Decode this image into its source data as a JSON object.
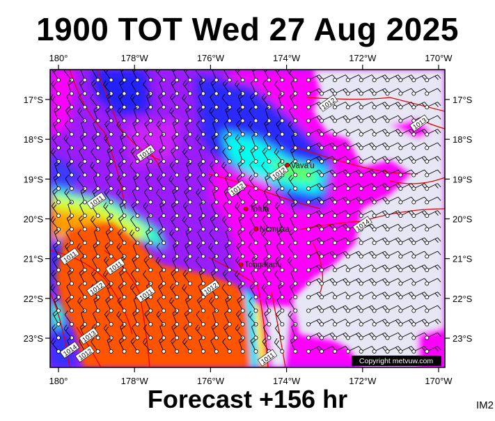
{
  "title": "1900 TOT Wed 27 Aug 2025",
  "footer": "Forecast +156 hr",
  "corner_label": "IM2",
  "copyright": "Copyright metvuw.com",
  "longitude_ticks": [
    "180°",
    "178°W",
    "176°W",
    "174°W",
    "172°W",
    "170°W"
  ],
  "latitude_ticks": [
    "17°S",
    "18°S",
    "19°S",
    "20°S",
    "21°S",
    "22°S",
    "23°S"
  ],
  "places": [
    {
      "name": "Vava'u",
      "lon": -173.98,
      "lat": -18.65
    },
    {
      "name": "Tofua",
      "lon": -175.07,
      "lat": -19.75
    },
    {
      "name": "Nomuka",
      "lon": -174.8,
      "lat": -20.25
    },
    {
      "name": "Tongatapu",
      "lon": -175.2,
      "lat": -21.15
    }
  ],
  "isobars": [
    {
      "label": "1012",
      "lon": -172.9,
      "lat": -17.1
    },
    {
      "label": "1013",
      "lon": -170.5,
      "lat": -17.6
    },
    {
      "label": "1012",
      "lon": -177.7,
      "lat": -18.35
    },
    {
      "label": "1012",
      "lon": -174.2,
      "lat": -18.85
    },
    {
      "label": "1012",
      "lon": -175.3,
      "lat": -19.25
    },
    {
      "label": "1011",
      "lon": -179.0,
      "lat": -19.55
    },
    {
      "label": "1014",
      "lon": -172.0,
      "lat": -20.15
    },
    {
      "label": "1011",
      "lon": -179.7,
      "lat": -20.95
    },
    {
      "label": "1011",
      "lon": -178.5,
      "lat": -21.2
    },
    {
      "label": "1012",
      "lon": -179.0,
      "lat": -21.75
    },
    {
      "label": "1011",
      "lon": -177.7,
      "lat": -21.9
    },
    {
      "label": "1012",
      "lon": -176.0,
      "lat": -21.75
    },
    {
      "label": "1013",
      "lon": -179.2,
      "lat": -22.95
    },
    {
      "label": "1014",
      "lon": -179.7,
      "lat": -23.3
    },
    {
      "label": "1012",
      "lon": -179.3,
      "lat": -23.4
    },
    {
      "label": "1011",
      "lon": -174.5,
      "lat": -23.5
    }
  ],
  "colors": {
    "dry": "#e6e6f5",
    "magenta": "#ff00ff",
    "purple": "#9b1cff",
    "blue": "#1e1eff",
    "cyan": "#00ffee",
    "green": "#4dff4d",
    "yellow": "#ffff00",
    "orange": "#ff5500",
    "isobar": "#e60000"
  }
}
